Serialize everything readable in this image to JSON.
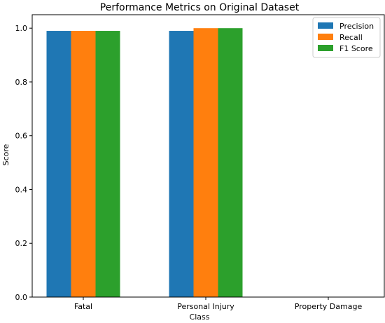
{
  "chart_data": {
    "type": "bar",
    "title": "Performance Metrics on Original Dataset",
    "xlabel": "Class",
    "ylabel": "Score",
    "categories": [
      "Fatal",
      "Personal Injury",
      "Property Damage"
    ],
    "series": [
      {
        "name": "Precision",
        "color": "#1f77b4",
        "values": [
          0.99,
          0.99,
          0.0
        ]
      },
      {
        "name": "Recall",
        "color": "#ff7f0e",
        "values": [
          0.99,
          1.0,
          0.0
        ]
      },
      {
        "name": "F1 Score",
        "color": "#2ca02c",
        "values": [
          0.99,
          1.0,
          0.0
        ]
      }
    ],
    "ylim": [
      0,
      1.05
    ],
    "yticks": [
      "0.0",
      "0.2",
      "0.4",
      "0.6",
      "0.8",
      "1.0"
    ],
    "grid": false,
    "legend_position": "top-right"
  }
}
